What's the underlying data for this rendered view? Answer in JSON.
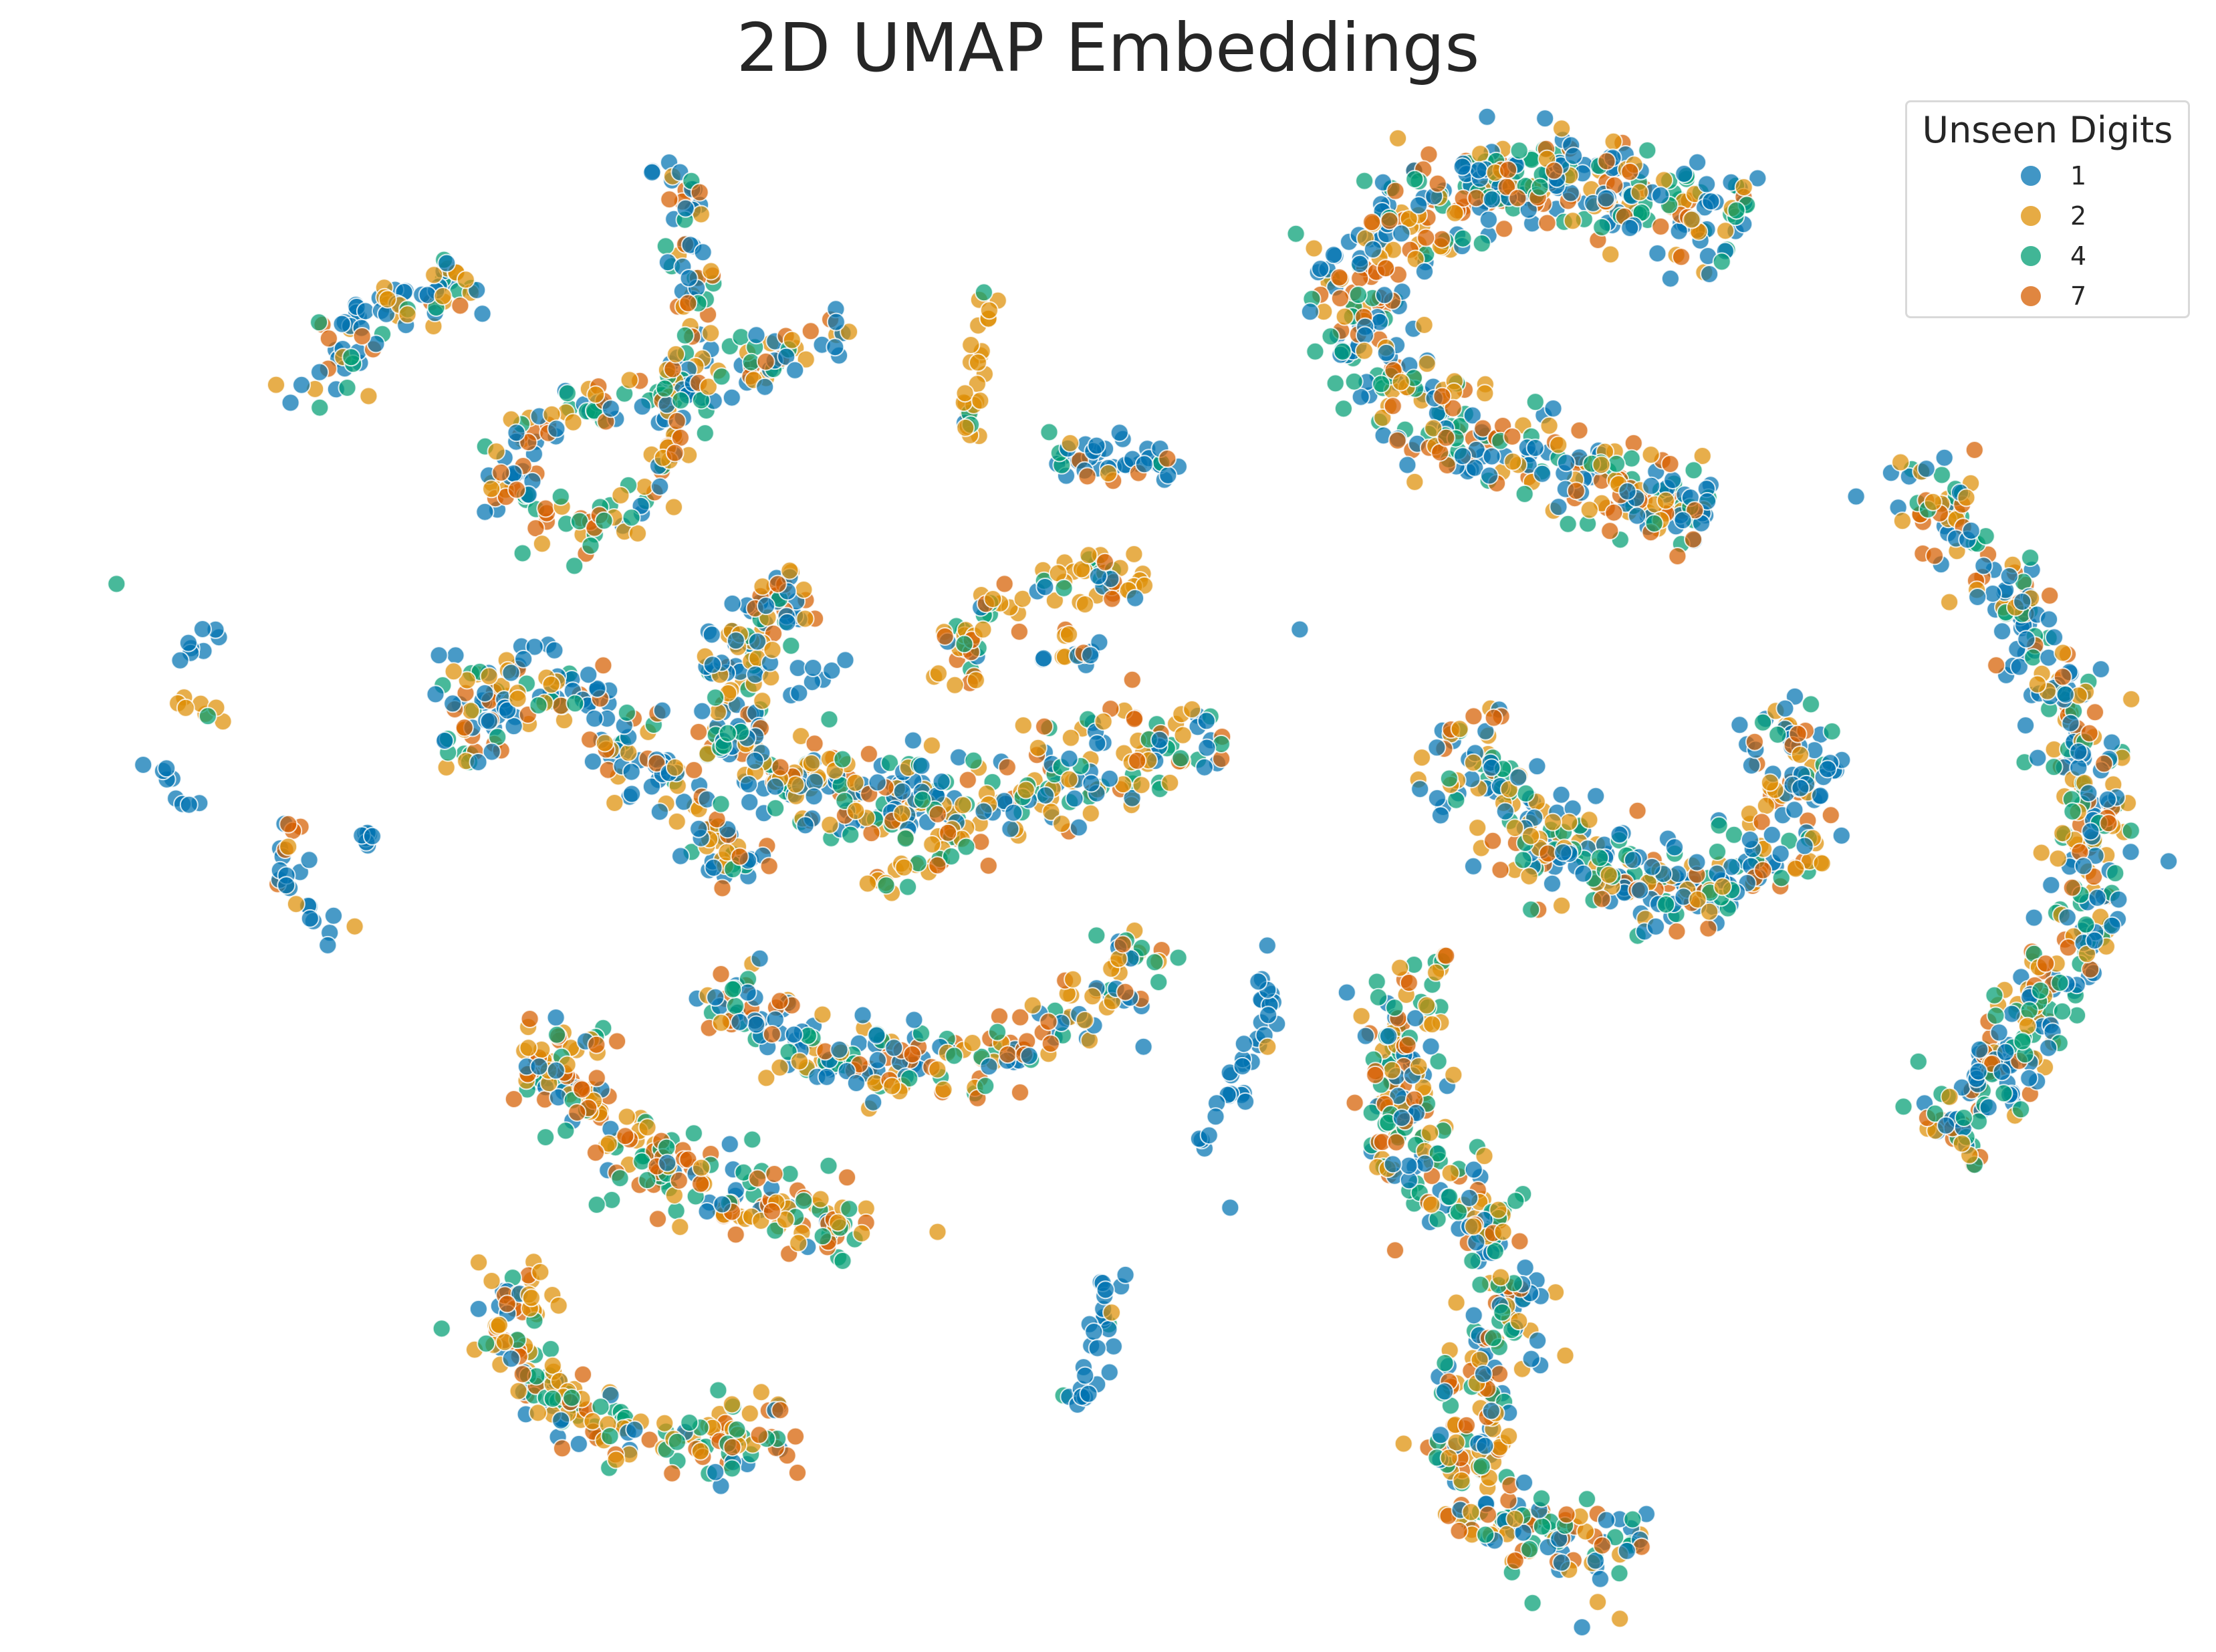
{
  "chart_data": {
    "type": "scatter",
    "title": "2D UMAP Embeddings",
    "xlabel": "",
    "ylabel": "",
    "axes_visible": false,
    "grid": false,
    "xlim": [
      0,
      1560
    ],
    "ylim": [
      0,
      1160
    ],
    "legend": {
      "title": "Unseen Digits",
      "placement": "top-right",
      "entries": [
        {
          "label": "1",
          "color": "#0173b2"
        },
        {
          "label": "2",
          "color": "#de8f05"
        },
        {
          "label": "4",
          "color": "#029e73"
        },
        {
          "label": "7",
          "color": "#d55e00"
        }
      ]
    },
    "clusters": [
      {
        "path": [
          [
            215,
            290
          ],
          [
            250,
            230
          ],
          [
            300,
            205
          ],
          [
            340,
            205
          ]
        ],
        "width": 26,
        "mix": {
          "1": 0.45,
          "2": 0.3,
          "4": 0.15,
          "7": 0.1
        }
      },
      {
        "path": [
          [
            470,
            110
          ],
          [
            490,
            170
          ],
          [
            488,
            235
          ],
          [
            470,
            285
          ],
          [
            420,
            280
          ],
          [
            360,
            310
          ],
          [
            350,
            345
          ],
          [
            390,
            375
          ],
          [
            445,
            355
          ],
          [
            475,
            320
          ],
          [
            482,
            275
          ],
          [
            510,
            265
          ],
          [
            560,
            250
          ],
          [
            598,
            232
          ]
        ],
        "width": 22,
        "mix": {
          "1": 0.35,
          "2": 0.25,
          "4": 0.2,
          "7": 0.2
        }
      },
      {
        "path": [
          [
            700,
            205
          ],
          [
            690,
            245
          ],
          [
            680,
            285
          ],
          [
            688,
            310
          ]
        ],
        "width": 14,
        "mix": {
          "1": 0.05,
          "2": 0.85,
          "4": 0.05,
          "7": 0.05
        }
      },
      {
        "path": [
          [
            742,
            328
          ],
          [
            770,
            315
          ],
          [
            800,
            320
          ],
          [
            825,
            332
          ]
        ],
        "width": 26,
        "mix": {
          "1": 0.65,
          "2": 0.1,
          "4": 0.15,
          "7": 0.1
        }
      },
      {
        "path": [
          [
            1230,
            160
          ],
          [
            1120,
            125
          ],
          [
            1020,
            135
          ],
          [
            960,
            170
          ],
          [
            945,
            225
          ],
          [
            980,
            275
          ],
          [
            1050,
            315
          ],
          [
            1130,
            340
          ],
          [
            1200,
            360
          ]
        ],
        "width": 50,
        "mix": {
          "1": 0.38,
          "2": 0.2,
          "4": 0.2,
          "7": 0.22
        }
      },
      {
        "path": [
          [
            1338,
            322
          ],
          [
            1390,
            385
          ],
          [
            1430,
            445
          ],
          [
            1470,
            520
          ],
          [
            1482,
            595
          ],
          [
            1465,
            665
          ],
          [
            1420,
            730
          ],
          [
            1370,
            805
          ]
        ],
        "width": 40,
        "mix": {
          "1": 0.4,
          "2": 0.22,
          "4": 0.2,
          "7": 0.18
        }
      },
      {
        "path": [
          [
            82,
            410
          ]
        ],
        "width": 4,
        "mix": {
          "4": 1.0
        }
      },
      {
        "path": [
          [
            125,
            465
          ],
          [
            140,
            452
          ],
          [
            160,
            448
          ]
        ],
        "width": 10,
        "mix": {
          "1": 1.0
        }
      },
      {
        "path": [
          [
            122,
            488
          ],
          [
            140,
            496
          ],
          [
            160,
            505
          ]
        ],
        "width": 8,
        "mix": {
          "2": 0.8,
          "4": 0.2
        }
      },
      {
        "path": [
          [
            112,
            532
          ],
          [
            118,
            550
          ],
          [
            140,
            568
          ]
        ],
        "width": 10,
        "mix": {
          "1": 1.0
        }
      },
      {
        "path": [
          [
            205,
            575
          ],
          [
            202,
            610
          ],
          [
            215,
            640
          ],
          [
            245,
            660
          ]
        ],
        "width": 14,
        "mix": {
          "1": 0.8,
          "2": 0.1,
          "7": 0.1
        }
      },
      {
        "path": [
          [
            255,
            585
          ],
          [
            270,
            600
          ]
        ],
        "width": 6,
        "mix": {
          "1": 1.0
        }
      },
      {
        "path": [
          [
            330,
            548
          ],
          [
            325,
            505
          ],
          [
            355,
            478
          ],
          [
            400,
            485
          ],
          [
            440,
            515
          ],
          [
            470,
            550
          ],
          [
            505,
            585
          ],
          [
            528,
            618
          ]
        ],
        "width": 34,
        "mix": {
          "1": 0.45,
          "2": 0.2,
          "4": 0.15,
          "7": 0.2
        }
      },
      {
        "path": [
          [
            563,
            408
          ],
          [
            530,
            440
          ],
          [
            510,
            485
          ],
          [
            520,
            530
          ],
          [
            580,
            560
          ],
          [
            680,
            565
          ],
          [
            780,
            540
          ],
          [
            860,
            515
          ]
        ],
        "width": 44,
        "mix": {
          "1": 0.35,
          "2": 0.3,
          "4": 0.2,
          "7": 0.15
        }
      },
      {
        "path": [
          [
            550,
            492
          ],
          [
            575,
            472
          ],
          [
            595,
            462
          ]
        ],
        "width": 8,
        "mix": {
          "1": 1.0
        }
      },
      {
        "path": [
          [
            670,
            480
          ],
          [
            695,
            430
          ],
          [
            740,
            408
          ],
          [
            815,
            402
          ]
        ],
        "width": 24,
        "mix": {
          "1": 0.15,
          "2": 0.45,
          "4": 0.25,
          "7": 0.15
        }
      },
      {
        "path": [
          [
            728,
            462
          ],
          [
            755,
            450
          ],
          [
            772,
            465
          ]
        ],
        "width": 18,
        "mix": {
          "1": 0.5,
          "2": 0.3,
          "7": 0.2
        }
      },
      {
        "path": [
          [
            612,
            622
          ],
          [
            655,
            610
          ],
          [
            680,
            580
          ]
        ],
        "width": 18,
        "mix": {
          "2": 0.6,
          "4": 0.2,
          "7": 0.2
        }
      },
      {
        "path": [
          [
            915,
            442
          ]
        ],
        "width": 4,
        "mix": {
          "1": 1.0
        }
      },
      {
        "path": [
          [
            1025,
            505
          ],
          [
            1055,
            560
          ],
          [
            1120,
            610
          ],
          [
            1190,
            632
          ],
          [
            1250,
            605
          ],
          [
            1275,
            555
          ],
          [
            1248,
            495
          ]
        ],
        "width": 46,
        "mix": {
          "1": 0.38,
          "2": 0.25,
          "4": 0.2,
          "7": 0.17
        }
      },
      {
        "path": [
          [
            500,
            690
          ],
          [
            540,
            720
          ],
          [
            600,
            745
          ],
          [
            670,
            752
          ],
          [
            740,
            725
          ],
          [
            790,
            685
          ],
          [
            800,
            655
          ]
        ],
        "width": 34,
        "mix": {
          "1": 0.3,
          "2": 0.25,
          "4": 0.25,
          "7": 0.2
        }
      },
      {
        "path": [
          [
            885,
            665
          ],
          [
            895,
            705
          ],
          [
            870,
            760
          ],
          [
            840,
            810
          ]
        ],
        "width": 12,
        "mix": {
          "1": 0.95,
          "2": 0.05
        }
      },
      {
        "path": [
          [
            805,
            735
          ]
        ],
        "width": 4,
        "mix": {
          "1": 1.0
        }
      },
      {
        "path": [
          [
            866,
            848
          ]
        ],
        "width": 4,
        "mix": {
          "1": 1.0
        }
      },
      {
        "path": [
          [
            982,
            678
          ],
          [
            995,
            730
          ],
          [
            975,
            790
          ],
          [
            1030,
            840
          ],
          [
            1065,
            895
          ],
          [
            1045,
            960
          ],
          [
            1025,
            1030
          ],
          [
            1065,
            1080
          ],
          [
            1160,
            1092
          ]
        ],
        "width": 42,
        "mix": {
          "1": 0.3,
          "2": 0.25,
          "4": 0.25,
          "7": 0.2
        }
      },
      {
        "path": [
          [
            410,
            718
          ],
          [
            405,
            740
          ],
          [
            370,
            755
          ],
          [
            420,
            785
          ],
          [
            465,
            820
          ],
          [
            530,
            845
          ],
          [
            610,
            862
          ]
        ],
        "width": 36,
        "mix": {
          "1": 0.15,
          "2": 0.35,
          "4": 0.25,
          "7": 0.25
        }
      },
      {
        "path": [
          [
            660,
            865
          ]
        ],
        "width": 6,
        "mix": {
          "2": 0.5,
          "4": 0.5
        }
      },
      {
        "path": [
          [
            785,
            890
          ],
          [
            780,
            925
          ],
          [
            770,
            955
          ],
          [
            758,
            985
          ]
        ],
        "width": 16,
        "mix": {
          "1": 0.75,
          "2": 0.1,
          "4": 0.15
        }
      },
      {
        "path": [
          [
            385,
            890
          ],
          [
            345,
            915
          ],
          [
            365,
            960
          ],
          [
            420,
            1000
          ],
          [
            490,
            1020
          ],
          [
            555,
            1000
          ]
        ],
        "width": 34,
        "mix": {
          "1": 0.15,
          "2": 0.35,
          "4": 0.3,
          "7": 0.2
        }
      }
    ]
  }
}
